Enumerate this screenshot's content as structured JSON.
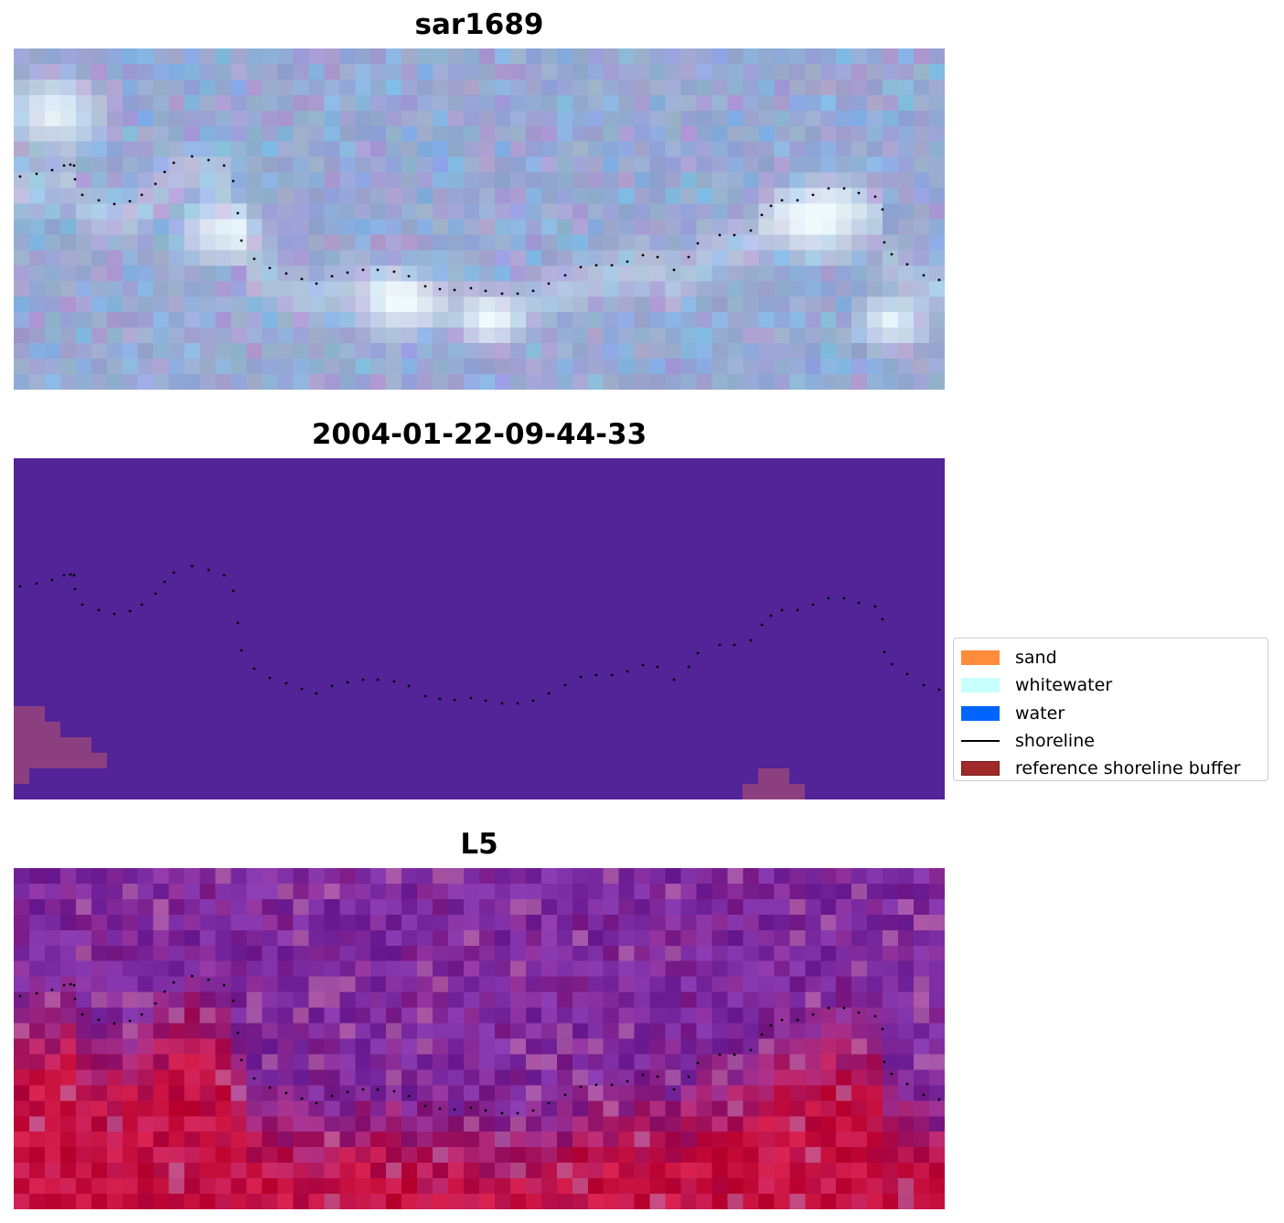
{
  "panels": [
    {
      "title": "sar1689",
      "style": "sar"
    },
    {
      "title": "2004-01-22-09-44-33",
      "style": "class"
    },
    {
      "title": "L5",
      "style": "ndwi"
    }
  ],
  "legend": {
    "items": [
      {
        "label": "sand",
        "color": "#ff8c3c",
        "kind": "patch"
      },
      {
        "label": "whitewater",
        "color": "#c8fffc",
        "kind": "patch"
      },
      {
        "label": "water",
        "color": "#0064ff",
        "kind": "patch"
      },
      {
        "label": "shoreline",
        "color": "#000000",
        "kind": "line"
      },
      {
        "label": "reference shoreline buffer",
        "color": "#a02a2a",
        "kind": "patch"
      }
    ]
  },
  "colors": {
    "class_background": "#532398",
    "buffer_overlay": "#8c3f80",
    "sar_base": "#8fa3cc",
    "ndwi_low": "#7a2aa0",
    "ndwi_high": "#c8103f"
  }
}
